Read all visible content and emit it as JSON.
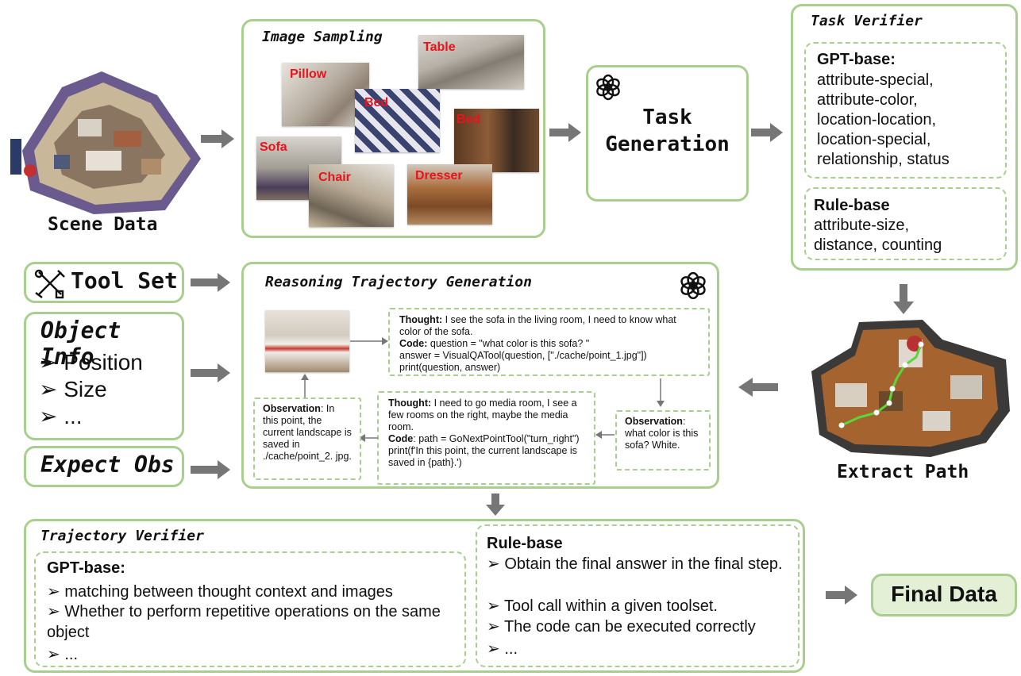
{
  "scene": {
    "label": "Scene Data"
  },
  "image_sampling": {
    "title": "Image Sampling",
    "labels": [
      "Pillow",
      "Table",
      "Bed",
      "Bed",
      "Sofa",
      "Chair",
      "Dresser"
    ]
  },
  "task_generation": {
    "line1": "Task",
    "line2": "Generation"
  },
  "task_verifier": {
    "title": "Task Verifier",
    "gpt_title": "GPT-base:",
    "gpt_items": [
      "attribute-special,",
      "attribute-color,",
      "location-location,",
      "location-special,",
      "relationship, status"
    ],
    "rule_title": "Rule-base",
    "rule_items": [
      "attribute-size,",
      "distance, counting"
    ]
  },
  "extract_path": {
    "label": "Extract Path"
  },
  "tool_set": {
    "label": "Tool Set"
  },
  "object_info": {
    "title": "Object Info",
    "items": [
      "Position",
      "Size",
      "..."
    ]
  },
  "expect_obs": {
    "label": "Expect Obs"
  },
  "reasoning": {
    "title": "Reasoning Trajectory Generation",
    "step1": {
      "thought_key": "Thought:",
      "thought": " I see the sofa in the living room, I need to know what color of the sofa.",
      "code_key": "Code:",
      "code1": " question = \"what color is this sofa? \"",
      "code2": "answer = VisualQATool(question, [\"./cache/point_1.jpg\"])",
      "code3": "print(question, answer)"
    },
    "obs1": {
      "key": "Observation",
      "text": ": what color is this sofa? White."
    },
    "step2": {
      "thought_key": "Thought:",
      "thought": " I need to go media room, I see a few rooms on the right, maybe the media room.",
      "code_key": "Code",
      "code1": ": path = GoNextPointTool(\"turn_right\")",
      "code2": "print(f'In this point, the current landscape is saved in {path}.')"
    },
    "obs2": {
      "key": "Observation",
      "text": ": In this point, the current landscape is saved in ./cache/point_2. jpg."
    }
  },
  "trajectory_verifier": {
    "title": "Trajectory Verifier",
    "gpt_title": "GPT-base:",
    "gpt_items": [
      "matching between thought context and images",
      "Whether to perform repetitive operations on the same object",
      "..."
    ],
    "rule_title": "Rule-base",
    "rule_items": [
      "Obtain the final answer in the final step.",
      "Tool call within a given toolset.",
      "The code can be executed correctly",
      "..."
    ]
  },
  "final": {
    "label": "Final Data"
  },
  "colors": {
    "green_border": "#a8cf8e",
    "arrow": "#767676",
    "red_label": "#e8141b",
    "final_bg": "#e3f0d6"
  }
}
